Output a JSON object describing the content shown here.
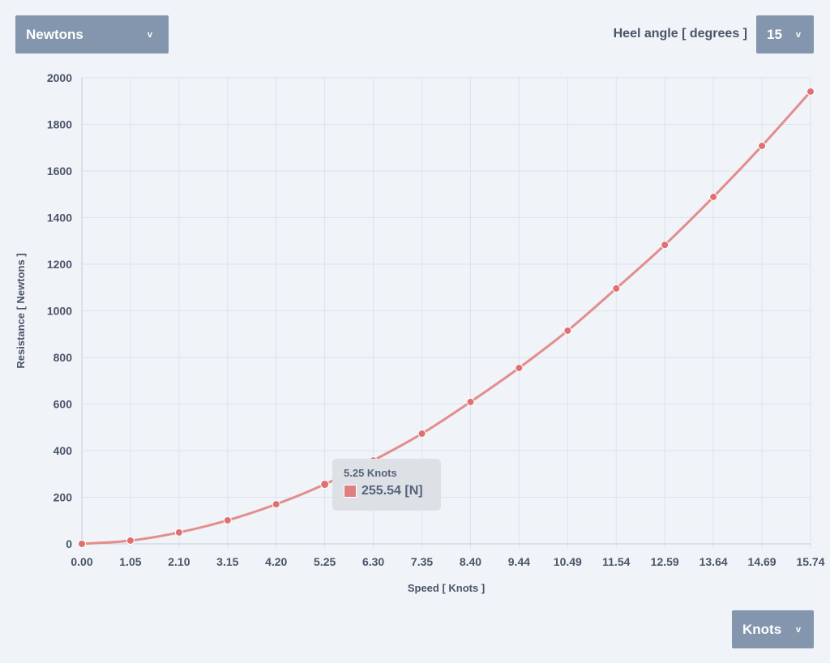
{
  "controls": {
    "unit_select": "Newtons",
    "heel_label": "Heel angle [ degrees ]",
    "heel_select": "15",
    "speed_unit_select": "Knots",
    "chevron": "v"
  },
  "tooltip": {
    "title": "5.25 Knots",
    "value": "255.54 [N]"
  },
  "colors": {
    "series": "#e38d8d",
    "point": "#e07070",
    "grid": "#dde3ec"
  },
  "chart_data": {
    "type": "line",
    "xlabel": "Speed [ Knots ]",
    "ylabel": "Resistance [ Newtons ]",
    "x": [
      "0.00",
      "1.05",
      "2.10",
      "3.15",
      "4.20",
      "5.25",
      "6.30",
      "7.35",
      "8.40",
      "9.44",
      "10.49",
      "11.54",
      "12.59",
      "13.64",
      "14.69",
      "15.74"
    ],
    "series": [
      {
        "name": "Resistance",
        "values": [
          0,
          14,
          49,
          101,
          170,
          255.54,
          358,
          473,
          609,
          755,
          915,
          1096,
          1283,
          1489,
          1708,
          1941
        ]
      }
    ],
    "ylim": [
      0,
      2000
    ],
    "yticks": [
      0,
      200,
      400,
      600,
      800,
      1000,
      1200,
      1400,
      1600,
      1800,
      2000
    ],
    "grid": true
  }
}
